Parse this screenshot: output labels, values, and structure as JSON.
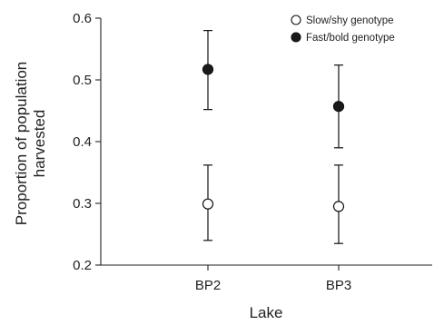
{
  "chart_data": {
    "type": "scatter",
    "xlabel": "Lake",
    "ylabel_lines": [
      "Proportion of population",
      "harvested"
    ],
    "categories": [
      "BP2",
      "BP3"
    ],
    "ylim": [
      0.2,
      0.6
    ],
    "yticks": [
      "0.2",
      "0.3",
      "0.4",
      "0.5",
      "0.6"
    ],
    "legend_position": "top-right",
    "grid": false,
    "error_bars": true,
    "series": [
      {
        "name": "Slow/shy genotype",
        "marker": "open-circle",
        "values": [
          0.299,
          0.295
        ],
        "lower": [
          0.24,
          0.235
        ],
        "upper": [
          0.362,
          0.362
        ]
      },
      {
        "name": "Fast/bold genotype",
        "marker": "filled-circle",
        "values": [
          0.517,
          0.457
        ],
        "lower": [
          0.452,
          0.39
        ],
        "upper": [
          0.58,
          0.524
        ]
      }
    ]
  },
  "colors": {
    "marker_fill": "#1a1a1a",
    "axis": "#222222"
  }
}
